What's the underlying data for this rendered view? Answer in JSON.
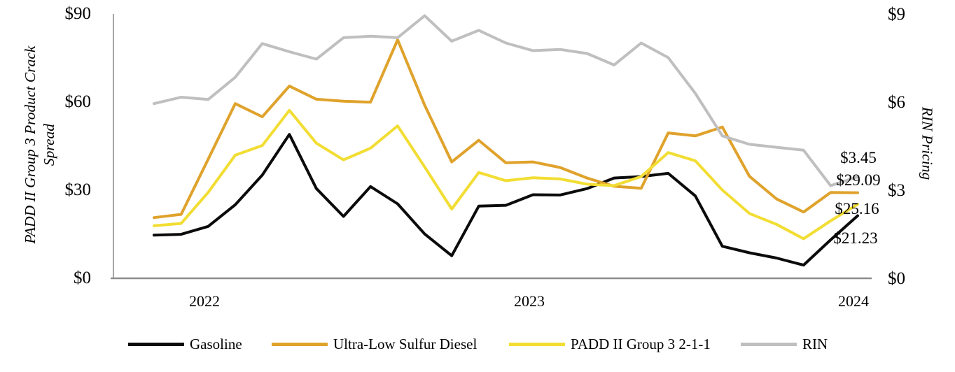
{
  "axes": {
    "left": {
      "title_line1": "PADD II Group 3 Product Crack",
      "title_line2": "Spread",
      "ticks": [
        "$90",
        "$60",
        "$30",
        "$0"
      ]
    },
    "right": {
      "title": "RIN Pricing",
      "ticks": [
        "$9",
        "$6",
        "$3",
        "$0"
      ]
    },
    "x": {
      "ticks": [
        "2022",
        "2023",
        "2024"
      ]
    }
  },
  "end_labels": [
    {
      "text": "$3.45",
      "series": "RIN"
    },
    {
      "text": "$29.09",
      "series": "Ultra-Low Sulfur Diesel"
    },
    {
      "text": "$25.16",
      "series": "PADD II Group 3 2-1-1"
    },
    {
      "text": "$21.23",
      "series": "Gasoline"
    }
  ],
  "legend": [
    {
      "label": "Gasoline"
    },
    {
      "label": "Ultra-Low Sulfur Diesel"
    },
    {
      "label": "PADD II Group 3 2-1-1"
    },
    {
      "label": "RIN"
    }
  ],
  "colors": {
    "gasoline": "#0b0b0b",
    "ulsd": "#DFA22B",
    "padd": "#F2DD33",
    "rin": "#BFBFBF",
    "axis_left": "#A6A6A6",
    "axis_bottom": "#8C8C8C"
  },
  "chart_data": {
    "type": "line",
    "title": "",
    "xlabel": "",
    "x_tick_labels": [
      "2022",
      "2023",
      "2024"
    ],
    "x": [
      "Nov-21",
      "Dec-21",
      "Jan-22",
      "Feb-22",
      "Mar-22",
      "Apr-22",
      "May-22",
      "Jun-22",
      "Jul-22",
      "Aug-22",
      "Sep-22",
      "Oct-22",
      "Nov-22",
      "Dec-22",
      "Jan-23",
      "Feb-23",
      "Mar-23",
      "Apr-23",
      "May-23",
      "Jun-23",
      "Jul-23",
      "Aug-23",
      "Sep-23",
      "Oct-23",
      "Nov-23",
      "Dec-23",
      "Jan-24"
    ],
    "left_axis": {
      "label": "PADD II Group 3 Product Crack Spread",
      "min": 0,
      "max": 90,
      "tick_step": 30,
      "tick_format": "$"
    },
    "right_axis": {
      "label": "RIN Pricing",
      "min": 0,
      "max": 9,
      "tick_step": 3,
      "tick_format": "$"
    },
    "grid": false,
    "legend_position": "bottom",
    "series": [
      {
        "name": "Gasoline",
        "axis": "left",
        "color": "#0b0b0b",
        "end_label": "$21.23",
        "values": [
          14.6,
          14.9,
          17.6,
          25.0,
          35.1,
          49.0,
          30.5,
          21.0,
          31.2,
          25.3,
          15.0,
          7.6,
          24.5,
          24.8,
          28.4,
          28.3,
          30.5,
          34.1,
          34.6,
          35.7,
          28.0,
          10.8,
          8.6,
          6.8,
          4.4,
          13.0,
          21.23
        ]
      },
      {
        "name": "Ultra-Low Sulfur Diesel",
        "axis": "left",
        "color": "#DFA22B",
        "end_label": "$29.09",
        "values": [
          20.6,
          21.7,
          40.5,
          59.5,
          55.0,
          65.5,
          61.0,
          60.3,
          60.0,
          81.3,
          59.0,
          39.6,
          47.0,
          39.3,
          39.6,
          37.7,
          34.1,
          31.3,
          30.6,
          49.5,
          48.5,
          51.5,
          34.7,
          27.0,
          22.5,
          29.2,
          29.09
        ]
      },
      {
        "name": "PADD II Group 3 2-1-1",
        "axis": "left",
        "color": "#F2DD33",
        "end_label": "$25.16",
        "values": [
          17.8,
          18.6,
          29.2,
          41.9,
          45.2,
          57.2,
          46.0,
          40.3,
          44.3,
          51.9,
          37.9,
          23.5,
          36.0,
          33.2,
          34.2,
          33.8,
          32.0,
          31.5,
          34.6,
          42.8,
          40.0,
          30.0,
          22.0,
          18.3,
          13.4,
          19.5,
          25.16
        ]
      },
      {
        "name": "RIN",
        "axis": "right",
        "color": "#BFBFBF",
        "end_label": "$3.45",
        "values": [
          5.95,
          6.17,
          6.09,
          6.85,
          8.0,
          7.72,
          7.47,
          8.2,
          8.25,
          8.2,
          8.95,
          8.08,
          8.45,
          8.02,
          7.76,
          7.8,
          7.66,
          7.27,
          8.02,
          7.52,
          6.3,
          4.85,
          4.56,
          4.46,
          4.36,
          3.15,
          3.45
        ]
      }
    ]
  }
}
